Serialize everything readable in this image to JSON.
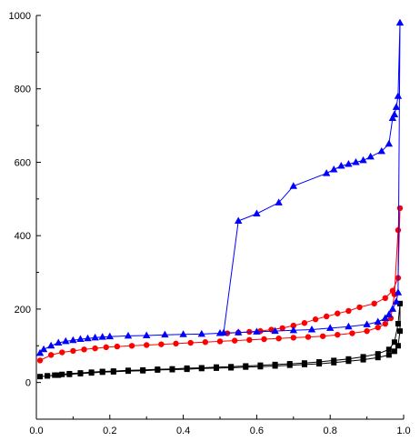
{
  "chart_data": {
    "type": "line",
    "title": "",
    "xlabel": "",
    "ylabel": "",
    "xlim": [
      0.0,
      1.0
    ],
    "ylim": [
      -100,
      1000
    ],
    "x_ticks": [
      0.0,
      0.2,
      0.4,
      0.6,
      0.8,
      1.0
    ],
    "x_tick_labels": [
      "0.0",
      "0.2",
      "0.4",
      "0.6",
      "0.8",
      "1.0"
    ],
    "y_ticks": [
      0,
      200,
      400,
      600,
      800,
      1000
    ],
    "y_tick_labels": [
      "0",
      "200",
      "400",
      "600",
      "800",
      "1000"
    ],
    "grid": false,
    "legend": "none",
    "series": [
      {
        "color": "#000000",
        "marker": "square",
        "x": [
          0.01,
          0.03,
          0.05,
          0.07,
          0.09,
          0.12,
          0.15,
          0.18,
          0.21,
          0.25,
          0.29,
          0.33,
          0.37,
          0.41,
          0.45,
          0.49,
          0.53,
          0.57,
          0.61,
          0.65,
          0.69,
          0.73,
          0.77,
          0.81,
          0.85,
          0.89,
          0.93,
          0.96,
          0.975,
          0.985,
          0.99,
          0.99,
          0.985,
          0.975,
          0.96,
          0.93,
          0.89,
          0.85,
          0.81,
          0.77,
          0.73,
          0.69,
          0.65,
          0.61,
          0.57,
          0.53,
          0.49,
          0.45,
          0.41,
          0.37,
          0.33,
          0.29,
          0.25,
          0.21,
          0.18,
          0.15,
          0.12,
          0.09,
          0.06,
          0.03
        ],
        "y": [
          16,
          18,
          20,
          22,
          24,
          26,
          28,
          30,
          31,
          33,
          34,
          36,
          37,
          39,
          40,
          42,
          43,
          45,
          47,
          49,
          51,
          53,
          56,
          60,
          64,
          70,
          78,
          90,
          110,
          160,
          215,
          140,
          100,
          85,
          75,
          68,
          62,
          58,
          54,
          51,
          49,
          47,
          45,
          43,
          42,
          40,
          39,
          38,
          36,
          35,
          34,
          32,
          31,
          29,
          28,
          26,
          24,
          22,
          20,
          18
        ]
      },
      {
        "color": "#ff0000",
        "marker": "circle",
        "x": [
          0.01,
          0.04,
          0.07,
          0.1,
          0.13,
          0.16,
          0.19,
          0.22,
          0.26,
          0.3,
          0.34,
          0.38,
          0.42,
          0.46,
          0.5,
          0.54,
          0.58,
          0.62,
          0.66,
          0.7,
          0.74,
          0.78,
          0.82,
          0.86,
          0.9,
          0.93,
          0.95,
          0.965,
          0.975,
          0.985,
          0.99,
          0.985,
          0.97,
          0.95,
          0.92,
          0.88,
          0.85,
          0.82,
          0.79,
          0.76,
          0.73,
          0.7,
          0.67,
          0.64,
          0.61,
          0.58,
          0.55,
          0.52
        ],
        "y": [
          60,
          75,
          82,
          86,
          90,
          93,
          96,
          98,
          100,
          102,
          104,
          106,
          108,
          110,
          112,
          114,
          116,
          118,
          120,
          122,
          124,
          126,
          130,
          134,
          140,
          150,
          160,
          175,
          240,
          415,
          475,
          285,
          250,
          230,
          215,
          205,
          195,
          188,
          180,
          172,
          162,
          155,
          148,
          144,
          140,
          138,
          136,
          134
        ]
      },
      {
        "color": "#0000ff",
        "marker": "triangle",
        "x": [
          0.01,
          0.02,
          0.04,
          0.06,
          0.08,
          0.1,
          0.12,
          0.14,
          0.16,
          0.18,
          0.2,
          0.25,
          0.3,
          0.35,
          0.4,
          0.45,
          0.5,
          0.55,
          0.6,
          0.65,
          0.7,
          0.75,
          0.8,
          0.85,
          0.9,
          0.93,
          0.95,
          0.96,
          0.97,
          0.98,
          0.985,
          0.99,
          0.985,
          0.98,
          0.975,
          0.97,
          0.96,
          0.94,
          0.91,
          0.89,
          0.87,
          0.85,
          0.83,
          0.81,
          0.79,
          0.7,
          0.66,
          0.6,
          0.55,
          0.51
        ],
        "y": [
          80,
          90,
          100,
          108,
          112,
          115,
          118,
          120,
          122,
          124,
          125,
          127,
          128,
          130,
          131,
          132,
          134,
          136,
          138,
          140,
          142,
          144,
          148,
          152,
          158,
          165,
          175,
          185,
          200,
          220,
          245,
          980,
          780,
          750,
          730,
          720,
          650,
          630,
          615,
          605,
          600,
          595,
          590,
          580,
          570,
          535,
          490,
          460,
          440,
          135
        ]
      }
    ]
  }
}
